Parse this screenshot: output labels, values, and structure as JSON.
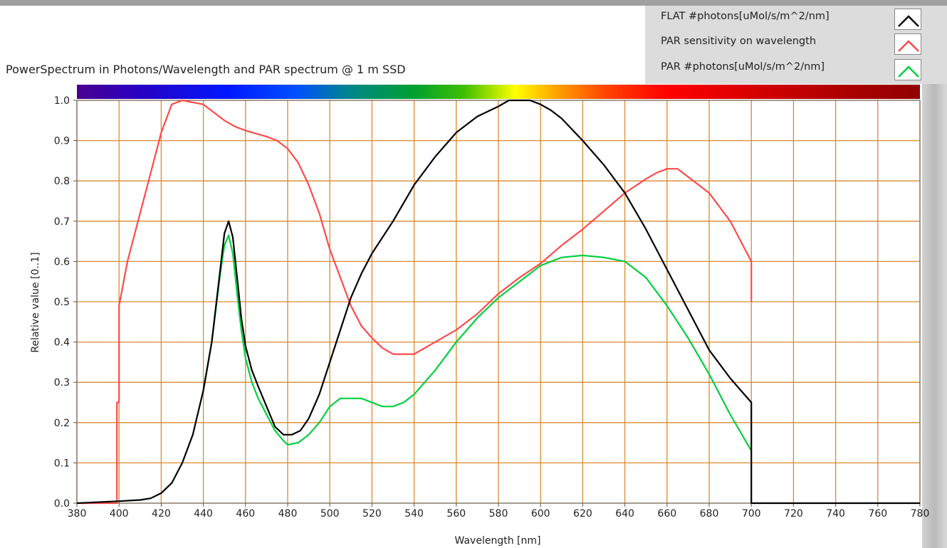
{
  "title": "PowerSpectrum in Photons/Wavelength and PAR spectrum @ 1 m SSD",
  "legend": [
    {
      "label": "FLAT #photons[uMol/s/m^2/nm]",
      "color": "#000000"
    },
    {
      "label": "PAR sensitivity on wavelength",
      "color": "#ff4a4a"
    },
    {
      "label": "PAR #photons[uMol/s/m^2/nm]",
      "color": "#00d040"
    }
  ],
  "colors": {
    "grid": "#d98a2b",
    "plot_bg": "#ffffff",
    "axis": "#555555"
  },
  "chart_data": {
    "type": "line",
    "title": "PowerSpectrum in Photons/Wavelength and PAR spectrum @ 1 m SSD",
    "xlabel": "Wavelength [nm]",
    "ylabel": "Relative value [0..1]",
    "xlim": [
      380,
      780
    ],
    "ylim": [
      0,
      1.0
    ],
    "grid": true,
    "legend_position": "top-right",
    "x_ticks": [
      "380",
      "400",
      "420",
      "440",
      "460",
      "480",
      "500",
      "520",
      "540",
      "560",
      "580",
      "600",
      "620",
      "640",
      "660",
      "680",
      "700",
      "720",
      "740",
      "760",
      "780"
    ],
    "y_ticks": [
      "0.0",
      "0.1",
      "0.2",
      "0.3",
      "0.4",
      "0.5",
      "0.6",
      "0.7",
      "0.8",
      "0.9",
      "1.0"
    ],
    "series": [
      {
        "name": "FLAT #photons[uMol/s/m^2/nm]",
        "color": "#000000",
        "x": [
          380,
          400,
          410,
          415,
          420,
          425,
          430,
          435,
          440,
          444,
          448,
          450,
          452,
          454,
          456,
          458,
          460,
          463,
          466,
          470,
          474,
          478,
          482,
          486,
          490,
          495,
          500,
          505,
          510,
          515,
          520,
          530,
          540,
          550,
          560,
          570,
          580,
          585,
          590,
          595,
          600,
          605,
          610,
          620,
          630,
          640,
          650,
          660,
          670,
          680,
          690,
          700,
          700,
          780
        ],
        "y": [
          0,
          0.005,
          0.008,
          0.012,
          0.025,
          0.05,
          0.1,
          0.17,
          0.28,
          0.4,
          0.58,
          0.67,
          0.7,
          0.66,
          0.56,
          0.46,
          0.39,
          0.33,
          0.29,
          0.24,
          0.19,
          0.17,
          0.17,
          0.18,
          0.21,
          0.27,
          0.35,
          0.43,
          0.51,
          0.57,
          0.62,
          0.7,
          0.79,
          0.86,
          0.92,
          0.96,
          0.985,
          1.0,
          1.0,
          1.0,
          0.99,
          0.975,
          0.955,
          0.9,
          0.84,
          0.77,
          0.68,
          0.58,
          0.48,
          0.38,
          0.31,
          0.25,
          0,
          0
        ]
      },
      {
        "name": "PAR sensitivity on wavelength",
        "color": "#ff4a4a",
        "x": [
          380,
          399,
          399,
          400,
          400,
          404,
          410,
          416,
          420,
          425,
          430,
          440,
          445,
          450,
          455,
          460,
          470,
          475,
          480,
          485,
          490,
          495,
          500,
          505,
          510,
          515,
          520,
          525,
          530,
          535,
          540,
          550,
          560,
          570,
          580,
          590,
          600,
          610,
          620,
          630,
          640,
          650,
          655,
          660,
          665,
          670,
          680,
          690,
          700,
          700
        ],
        "y": [
          0,
          0,
          0.25,
          0.25,
          0.49,
          0.6,
          0.72,
          0.84,
          0.92,
          0.99,
          1.0,
          0.99,
          0.97,
          0.95,
          0.935,
          0.925,
          0.91,
          0.9,
          0.88,
          0.845,
          0.79,
          0.72,
          0.63,
          0.56,
          0.49,
          0.44,
          0.41,
          0.385,
          0.37,
          0.37,
          0.37,
          0.4,
          0.43,
          0.47,
          0.52,
          0.56,
          0.595,
          0.64,
          0.68,
          0.725,
          0.77,
          0.805,
          0.82,
          0.83,
          0.83,
          0.81,
          0.77,
          0.7,
          0.6,
          0.5
        ]
      },
      {
        "name": "PAR #photons[uMol/s/m^2/nm]",
        "color": "#00d040",
        "x": [
          440,
          444,
          448,
          450,
          452,
          454,
          456,
          458,
          460,
          463,
          466,
          470,
          474,
          478,
          480,
          485,
          490,
          495,
          500,
          505,
          510,
          515,
          520,
          525,
          530,
          535,
          540,
          550,
          560,
          570,
          580,
          590,
          600,
          610,
          620,
          630,
          640,
          650,
          660,
          670,
          680,
          690,
          700
        ],
        "y": [
          0.28,
          0.4,
          0.57,
          0.64,
          0.665,
          0.62,
          0.52,
          0.43,
          0.36,
          0.3,
          0.26,
          0.22,
          0.18,
          0.155,
          0.145,
          0.15,
          0.17,
          0.2,
          0.24,
          0.26,
          0.26,
          0.26,
          0.25,
          0.24,
          0.24,
          0.25,
          0.27,
          0.33,
          0.4,
          0.46,
          0.51,
          0.55,
          0.59,
          0.61,
          0.615,
          0.61,
          0.6,
          0.56,
          0.49,
          0.41,
          0.32,
          0.22,
          0.13
        ]
      }
    ]
  }
}
